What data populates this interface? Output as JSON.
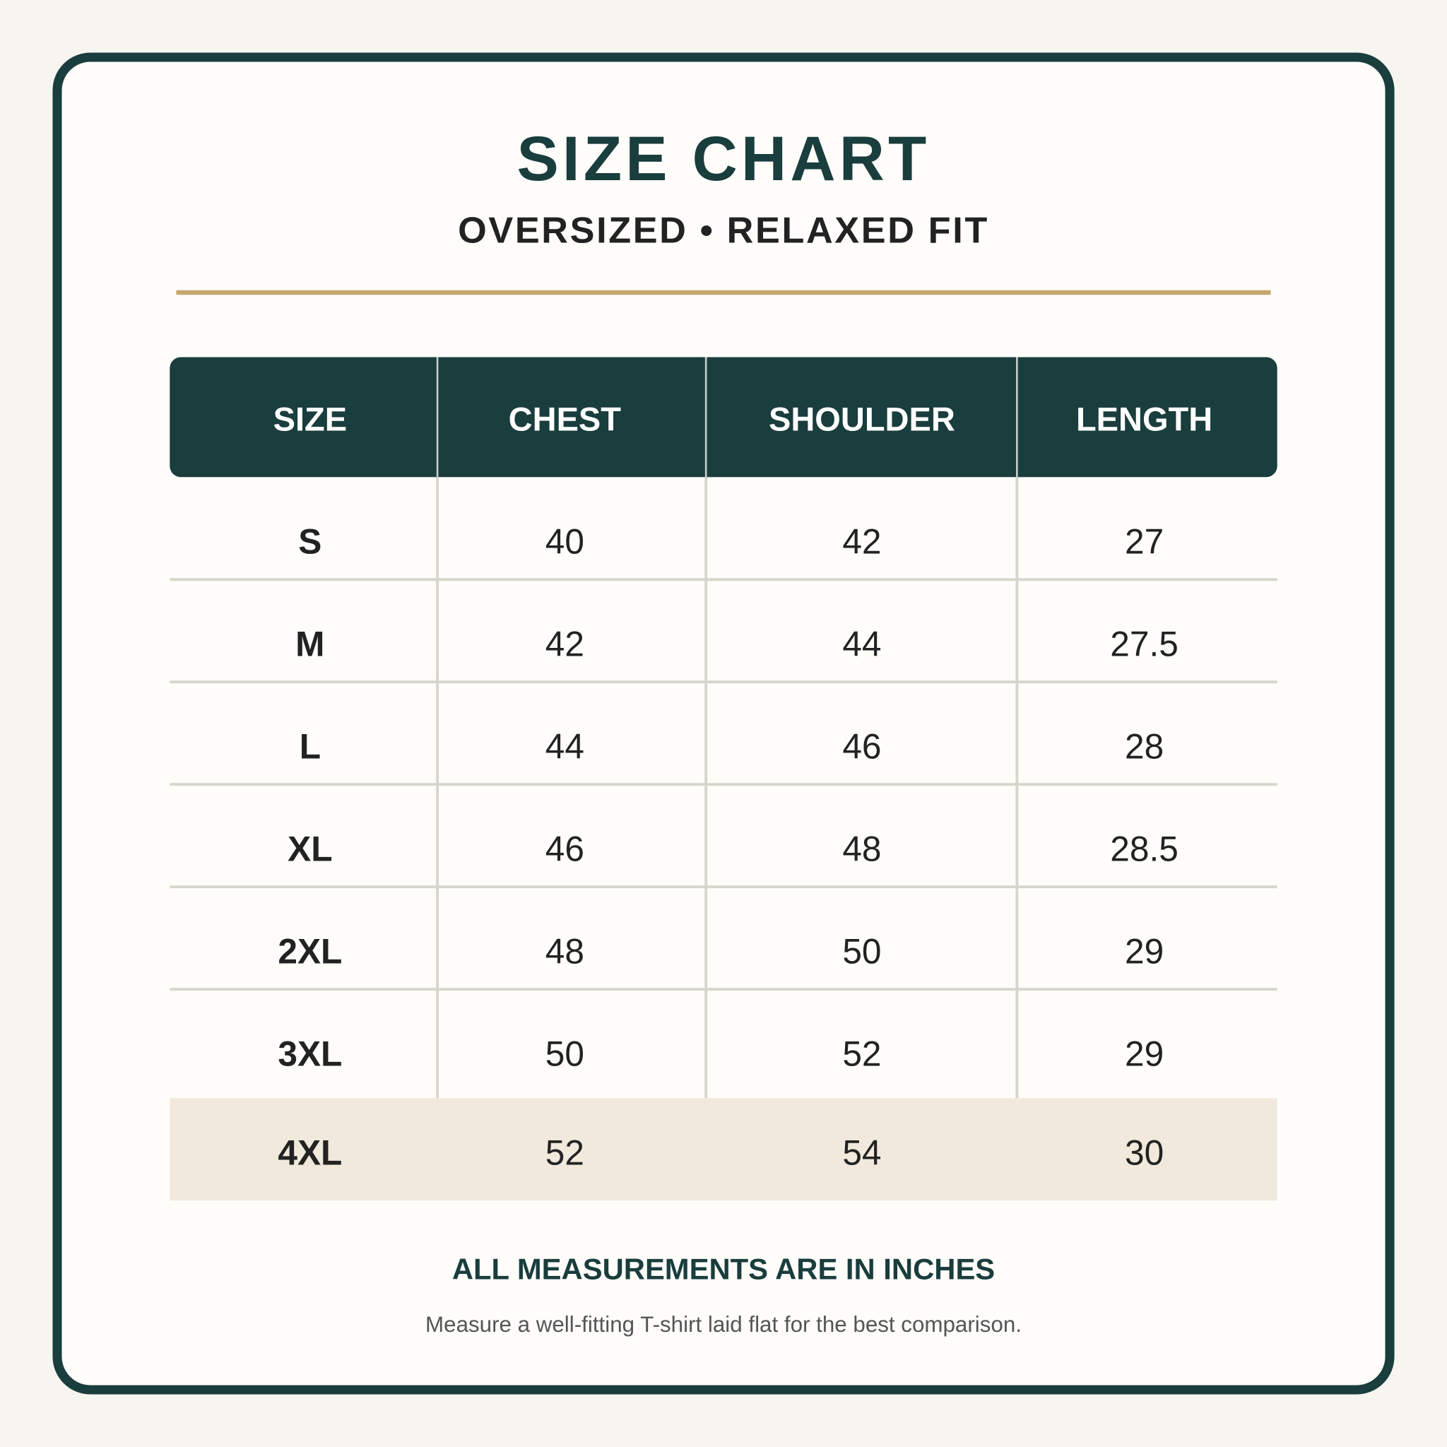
{
  "header": {
    "title": "SIZE CHART",
    "subtitle": "OVERSIZED • RELAXED FIT"
  },
  "table": {
    "columns": [
      "SIZE",
      "CHEST",
      "SHOULDER",
      "LENGTH"
    ],
    "rows": [
      [
        "S",
        40,
        42,
        27
      ],
      [
        "M",
        42,
        44,
        27.5
      ],
      [
        "L",
        44,
        46,
        28
      ],
      [
        "XL",
        46,
        48,
        28.5
      ],
      [
        "2XL",
        48,
        50,
        29
      ],
      [
        "3XL",
        50,
        52,
        29
      ],
      [
        "4XL",
        52,
        54,
        30
      ]
    ]
  },
  "footer": {
    "note": "ALL MEASUREMENTS ARE IN INCHES",
    "tip": "Measure a well-fitting T-shirt laid flat for the best comparison."
  }
}
